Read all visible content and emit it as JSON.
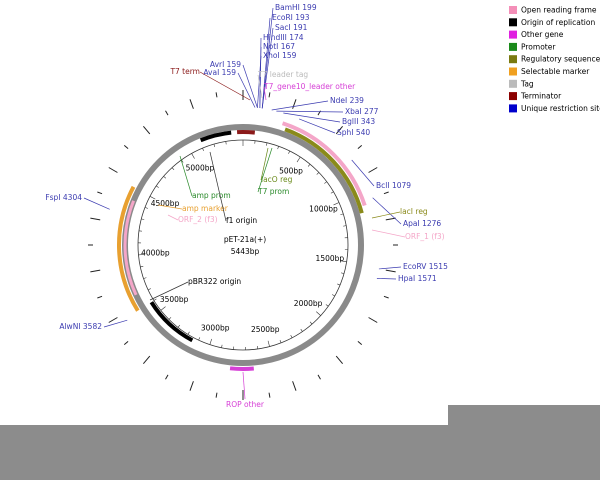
{
  "map": {
    "name": "pET-21a(+)",
    "size": "5443bp",
    "sites": [
      "BamHI 199",
      "EcoRI 193",
      "SacI 191",
      "HindIII 174",
      "NotI 167",
      "XhoI 159",
      "AvrI 159",
      "AvaI 159",
      "NdeI 239",
      "XbaI 277",
      "BglII 343",
      "SphI 540",
      "BclI 1079",
      "ApaI 1276",
      "EcoRV 1515",
      "HpaI 1571",
      "FspI 4304",
      "AlwNI 3582"
    ],
    "features": [
      {
        "label": "T7 term",
        "color": "#8b1a1a"
      },
      {
        "label": "T7 leader tag",
        "color": "#bbbbbb"
      },
      {
        "label": "T7_gene10_leader other",
        "color": "#d63fd6"
      },
      {
        "label": "lacI reg",
        "color": "#8a8a1a"
      },
      {
        "label": "ORF_1 (f3)",
        "color": "#f4a6c8"
      },
      {
        "label": "ROP other",
        "color": "#d63fd6"
      },
      {
        "label": "lacO reg",
        "color": "#6a8a1a"
      },
      {
        "label": "T7 prom",
        "color": "#2a8a2a"
      },
      {
        "label": "amp prom",
        "color": "#2a8a2a"
      },
      {
        "label": "amp marker",
        "color": "#e8a030"
      },
      {
        "label": "ORF_2 (f3)",
        "color": "#f4a6c8"
      },
      {
        "label": "f1 origin",
        "color": "#000000"
      },
      {
        "label": "pBR322 origin",
        "color": "#000000"
      }
    ],
    "scale": [
      "500bp",
      "1000bp",
      "1500bp",
      "2000bp",
      "2500bp",
      "3000bp",
      "3500bp",
      "4000bp",
      "4500bp",
      "5000bp"
    ],
    "legend": [
      {
        "label": "Open reading frame",
        "color": "#f48fb8"
      },
      {
        "label": "Origin of replication",
        "color": "#000000"
      },
      {
        "label": "Other gene",
        "color": "#e020e0"
      },
      {
        "label": "Promoter",
        "color": "#1a8a1a"
      },
      {
        "label": "Regulatory sequence",
        "color": "#7a7a10"
      },
      {
        "label": "Selectable marker",
        "color": "#f0a020"
      },
      {
        "label": "Tag",
        "color": "#bbbbbb"
      },
      {
        "label": "Terminator",
        "color": "#8b0000"
      },
      {
        "label": "Unique restriction site",
        "color": "#0000cc"
      }
    ]
  }
}
